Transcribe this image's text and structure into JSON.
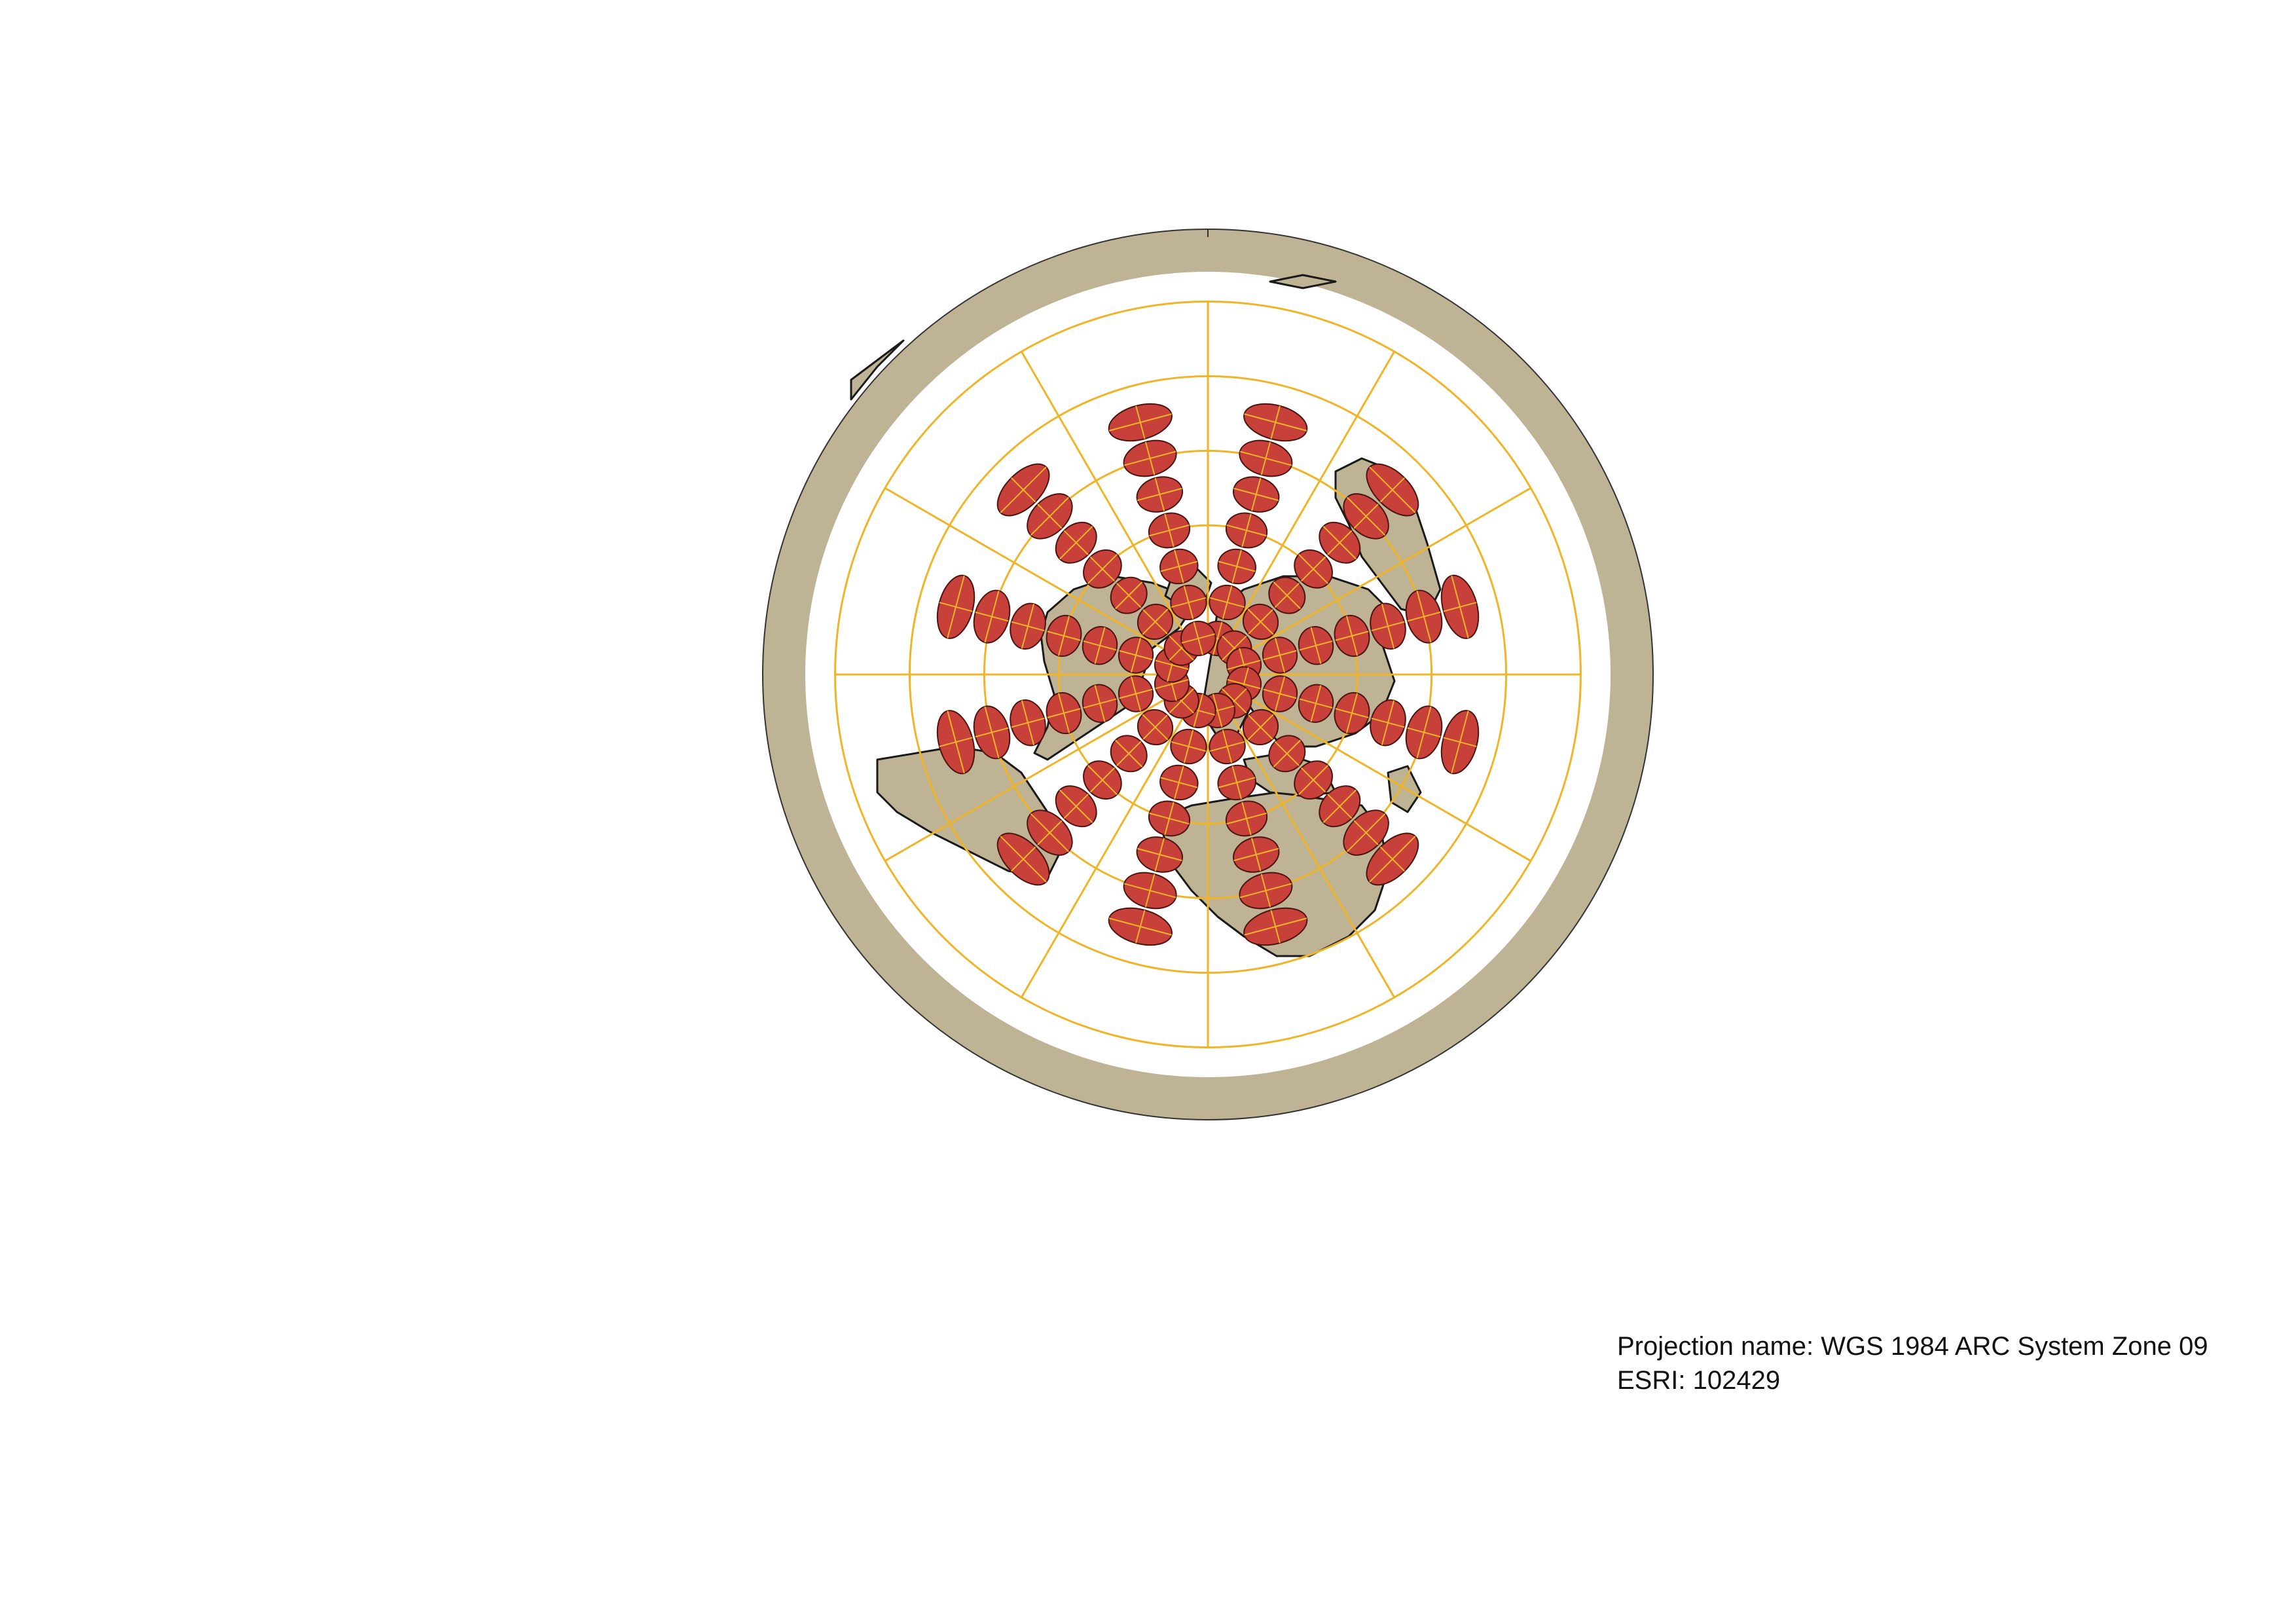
{
  "caption": {
    "projection_line": "Projection name: WGS 1984 ARC System Zone 09",
    "esri_line": "ESRI: 102429"
  },
  "map": {
    "projection": "azimuthal (polar aspect, centered on North Pole)",
    "indicatrix_note": "Tissot's indicatrices of distortion",
    "colors": {
      "background": "#ffffff",
      "ocean": "#ffffff",
      "land": "#bfb395",
      "land_outline": "#1a1a1a",
      "outer_ring": "#bfb395",
      "indicatrix_fill": "#c8403a",
      "indicatrix_outline": "#4a1410",
      "graticule": "#f0b429"
    },
    "graticule": {
      "parallel_rings_deg": [
        60,
        30,
        0,
        -30,
        -60
      ],
      "meridian_step_deg": 30
    },
    "indicatrix_rings": [
      {
        "lat": 75,
        "count": 12
      },
      {
        "lat": 60,
        "count": 12
      },
      {
        "lat": 45,
        "count": 12
      },
      {
        "lat": 30,
        "count": 12
      },
      {
        "lat": 15,
        "count": 12
      },
      {
        "lat": 0,
        "count": 12
      },
      {
        "lat": -15,
        "count": 12
      }
    ]
  }
}
